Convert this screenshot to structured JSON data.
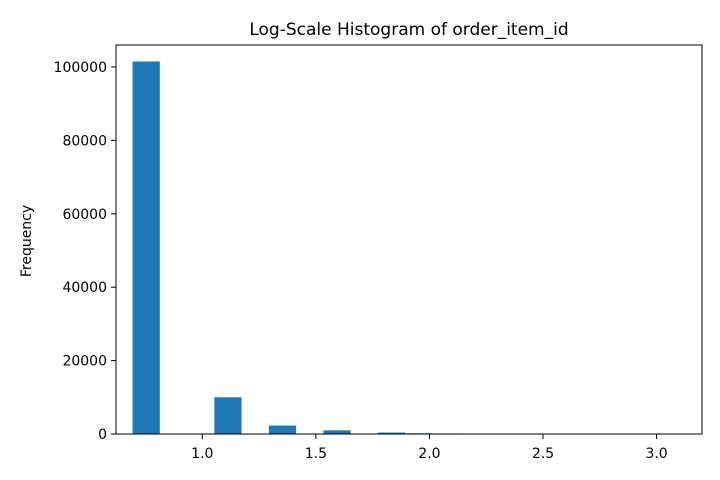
{
  "chart_data": {
    "type": "bar",
    "title": "Log-Scale Histogram of order_item_id",
    "xlabel": "",
    "ylabel": "Frequency",
    "bar_color": "#1f77b4",
    "xlim": [
      0.62,
      3.2
    ],
    "ylim": [
      0,
      106000
    ],
    "grid": false,
    "x_ticks": [
      {
        "value": 1.0,
        "label": "1.0"
      },
      {
        "value": 1.5,
        "label": "1.5"
      },
      {
        "value": 2.0,
        "label": "2.0"
      },
      {
        "value": 2.5,
        "label": "2.5"
      },
      {
        "value": 3.0,
        "label": "3.0"
      }
    ],
    "y_ticks": [
      {
        "value": 0,
        "label": "0"
      },
      {
        "value": 20000,
        "label": "20000"
      },
      {
        "value": 40000,
        "label": "40000"
      },
      {
        "value": 60000,
        "label": "60000"
      },
      {
        "value": 80000,
        "label": "80000"
      },
      {
        "value": 100000,
        "label": "100000"
      }
    ],
    "bins": [
      {
        "x0": 0.693,
        "x1": 0.813,
        "value": 101500
      },
      {
        "x0": 1.053,
        "x1": 1.173,
        "value": 10000
      },
      {
        "x0": 1.293,
        "x1": 1.413,
        "value": 2300
      },
      {
        "x0": 1.533,
        "x1": 1.653,
        "value": 1000
      },
      {
        "x0": 1.773,
        "x1": 1.893,
        "value": 400
      },
      {
        "x0": 1.893,
        "x1": 2.013,
        "value": 200
      },
      {
        "x0": 2.013,
        "x1": 2.133,
        "value": 150
      },
      {
        "x0": 2.133,
        "x1": 2.253,
        "value": 110
      },
      {
        "x0": 2.253,
        "x1": 2.373,
        "value": 90
      },
      {
        "x0": 2.373,
        "x1": 2.493,
        "value": 70
      },
      {
        "x0": 2.493,
        "x1": 2.613,
        "value": 60
      },
      {
        "x0": 2.613,
        "x1": 2.733,
        "value": 50
      },
      {
        "x0": 2.733,
        "x1": 2.853,
        "value": 20
      },
      {
        "x0": 2.853,
        "x1": 2.973,
        "value": 15
      },
      {
        "x0": 2.973,
        "x1": 3.093,
        "value": 10
      }
    ]
  }
}
